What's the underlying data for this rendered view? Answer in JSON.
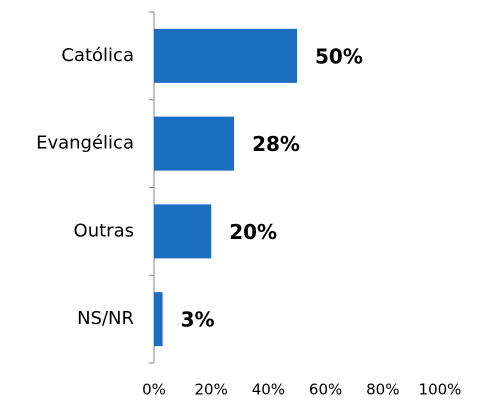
{
  "chart_data": {
    "type": "hbar",
    "categories": [
      "Católica",
      "Evangélica",
      "Outras",
      "NS/NR"
    ],
    "values": [
      50,
      28,
      20,
      3
    ],
    "value_labels": [
      "50%",
      "28%",
      "20%",
      "3%"
    ],
    "color": "#1b6ec2",
    "xlim": [
      0,
      100
    ],
    "xticks": [
      {
        "value": 0,
        "label": "0%"
      },
      {
        "value": 20,
        "label": "20%"
      },
      {
        "value": 40,
        "label": "40%"
      },
      {
        "value": 60,
        "label": "60%"
      },
      {
        "value": 80,
        "label": "80%"
      },
      {
        "value": 100,
        "label": "100%"
      }
    ],
    "grid": false
  }
}
